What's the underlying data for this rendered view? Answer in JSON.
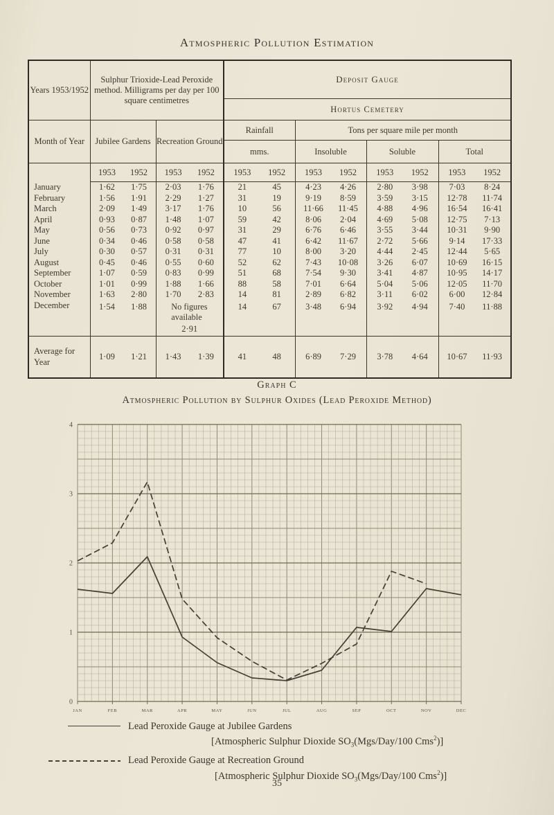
{
  "page": {
    "title": "Atmospheric Pollution Estimation",
    "page_number": "35"
  },
  "colors": {
    "paper": "#eae4d4",
    "ink": "#3a352b",
    "table_border": "#2e2a22",
    "grid_minor": "#b5ac9b",
    "grid_major": "#8f8776",
    "grid_unit": "#6f6856",
    "chart_line": "#453f35"
  },
  "table": {
    "years_label": "Years 1953/1952",
    "method_label": "Sulphur Trioxide-Lead Peroxide method. Milligrams per day per 100 square centimetres",
    "deposit_gauge_label": "Deposit Gauge",
    "hortus_label": "Hortus Cemetery",
    "month_label": "Month of Year",
    "jubilee_label": "Jubilee Gardens",
    "recreation_label": "Recreation Ground",
    "rainfall_label": "Rainfall",
    "mms_label": "mms.",
    "tons_label": "Tons per square mile per month",
    "insoluble_label": "Insoluble",
    "soluble_label": "Soluble",
    "total_label": "Total",
    "year_cols": [
      "1953",
      "1952"
    ],
    "rows": [
      {
        "month": "January",
        "values": [
          "1·62",
          "1·75",
          "2·03",
          "1·76",
          "21",
          "45",
          "4·23",
          "4·26",
          "2·80",
          "3·98",
          "7·03",
          "8·24"
        ]
      },
      {
        "month": "February",
        "values": [
          "1·56",
          "1·91",
          "2·29",
          "1·27",
          "31",
          "19",
          "9·19",
          "8·59",
          "3·59",
          "3·15",
          "12·78",
          "11·74"
        ]
      },
      {
        "month": "March",
        "values": [
          "2·09",
          "1·49",
          "3·17",
          "1·76",
          "10",
          "56",
          "11·66",
          "11·45",
          "4·88",
          "4·96",
          "16·54",
          "16·41"
        ]
      },
      {
        "month": "April",
        "values": [
          "0·93",
          "0·87",
          "1·48",
          "1·07",
          "59",
          "42",
          "8·06",
          "2·04",
          "4·69",
          "5·08",
          "12·75",
          "7·13"
        ]
      },
      {
        "month": "May",
        "values": [
          "0·56",
          "0·73",
          "0·92",
          "0·97",
          "31",
          "29",
          "6·76",
          "6·46",
          "3·55",
          "3·44",
          "10·31",
          "9·90"
        ]
      },
      {
        "month": "June",
        "values": [
          "0·34",
          "0·46",
          "0·58",
          "0·58",
          "47",
          "41",
          "6·42",
          "11·67",
          "2·72",
          "5·66",
          "9·14",
          "17·33"
        ]
      },
      {
        "month": "July",
        "values": [
          "0·30",
          "0·57",
          "0·31",
          "0·31",
          "77",
          "10",
          "8·00",
          "3·20",
          "4·44",
          "2·45",
          "12·44",
          "5·65"
        ]
      },
      {
        "month": "August",
        "values": [
          "0·45",
          "0·46",
          "0·55",
          "0·60",
          "52",
          "62",
          "7·43",
          "10·08",
          "3·26",
          "6·07",
          "10·69",
          "16·15"
        ]
      },
      {
        "month": "September",
        "values": [
          "1·07",
          "0·59",
          "0·83",
          "0·99",
          "51",
          "68",
          "7·54",
          "9·30",
          "3·41",
          "4·87",
          "10·95",
          "14·17"
        ]
      },
      {
        "month": "October",
        "values": [
          "1·01",
          "0·99",
          "1·88",
          "1·66",
          "88",
          "58",
          "7·01",
          "6·64",
          "5·04",
          "5·06",
          "12·05",
          "11·70"
        ]
      },
      {
        "month": "November",
        "values": [
          "1·63",
          "2·80",
          "1·70",
          "2·83",
          "14",
          "81",
          "2·89",
          "6·82",
          "3·11",
          "6·02",
          "6·00",
          "12·84"
        ]
      },
      {
        "month": "December",
        "values": [
          "1·54",
          "1·88",
          "No figures available",
          "2·91",
          "14",
          "67",
          "3·48",
          "6·94",
          "3·92",
          "4·94",
          "7·40",
          "11·88"
        ]
      }
    ],
    "average_row": {
      "month": "Average for Year",
      "values": [
        "1·09",
        "1·21",
        "1·43",
        "1·39",
        "41",
        "48",
        "6·89",
        "7·29",
        "3·78",
        "4·64",
        "10·67",
        "11·93"
      ]
    }
  },
  "graph": {
    "title": "Graph C",
    "subtitle": "Atmospheric Pollution by Sulphur Oxides (Lead Peroxide Method)"
  },
  "chart_data": {
    "type": "line",
    "title": "Graph C",
    "subtitle": "Atmospheric Pollution by Sulphur Oxides (Lead Peroxide Method)",
    "x": [
      "JAN",
      "FEB",
      "MAR",
      "APR",
      "MAY",
      "JUN",
      "JUL",
      "AUG",
      "SEP",
      "OCT",
      "NOV",
      "DEC"
    ],
    "xlabel": "",
    "ylabel": "",
    "ylim": [
      0,
      4
    ],
    "y_ticks": [
      0,
      1,
      2,
      3,
      4
    ],
    "grid": "fine graph paper: 5 minor cells per month, 10 minor cells per unit, heavier line every 5 cells",
    "legend_position": "below",
    "series": [
      {
        "name": "Lead Peroxide Gauge at Jubilee Gardens",
        "style": "solid",
        "values": [
          1.62,
          1.56,
          2.09,
          0.93,
          0.56,
          0.34,
          0.3,
          0.45,
          1.07,
          1.01,
          1.63,
          1.54
        ]
      },
      {
        "name": "Lead Peroxide Gauge at Recreation Ground",
        "style": "dashed",
        "values": [
          2.03,
          2.29,
          3.17,
          1.48,
          0.92,
          0.58,
          0.31,
          0.55,
          0.83,
          1.88,
          1.7,
          null
        ]
      }
    ]
  },
  "legend": {
    "entries": [
      {
        "style": "solid",
        "line1": "Lead Peroxide Gauge at Jubilee Gardens",
        "line2_prefix": "[Atmospheric Sulphur Dioxide SO",
        "line2_sub": "3",
        "line2_mid": "(Mgs/Day/100 Cms",
        "line2_sup": "2",
        "line2_suffix": ")]"
      },
      {
        "style": "dashed",
        "line1": "Lead Peroxide Gauge at Recreation Ground",
        "line2_prefix": "[Atmospheric Sulphur Dioxide SO",
        "line2_sub": "3",
        "line2_mid": "(Mgs/Day/100 Cms",
        "line2_sup": "2",
        "line2_suffix": ")]"
      }
    ]
  }
}
